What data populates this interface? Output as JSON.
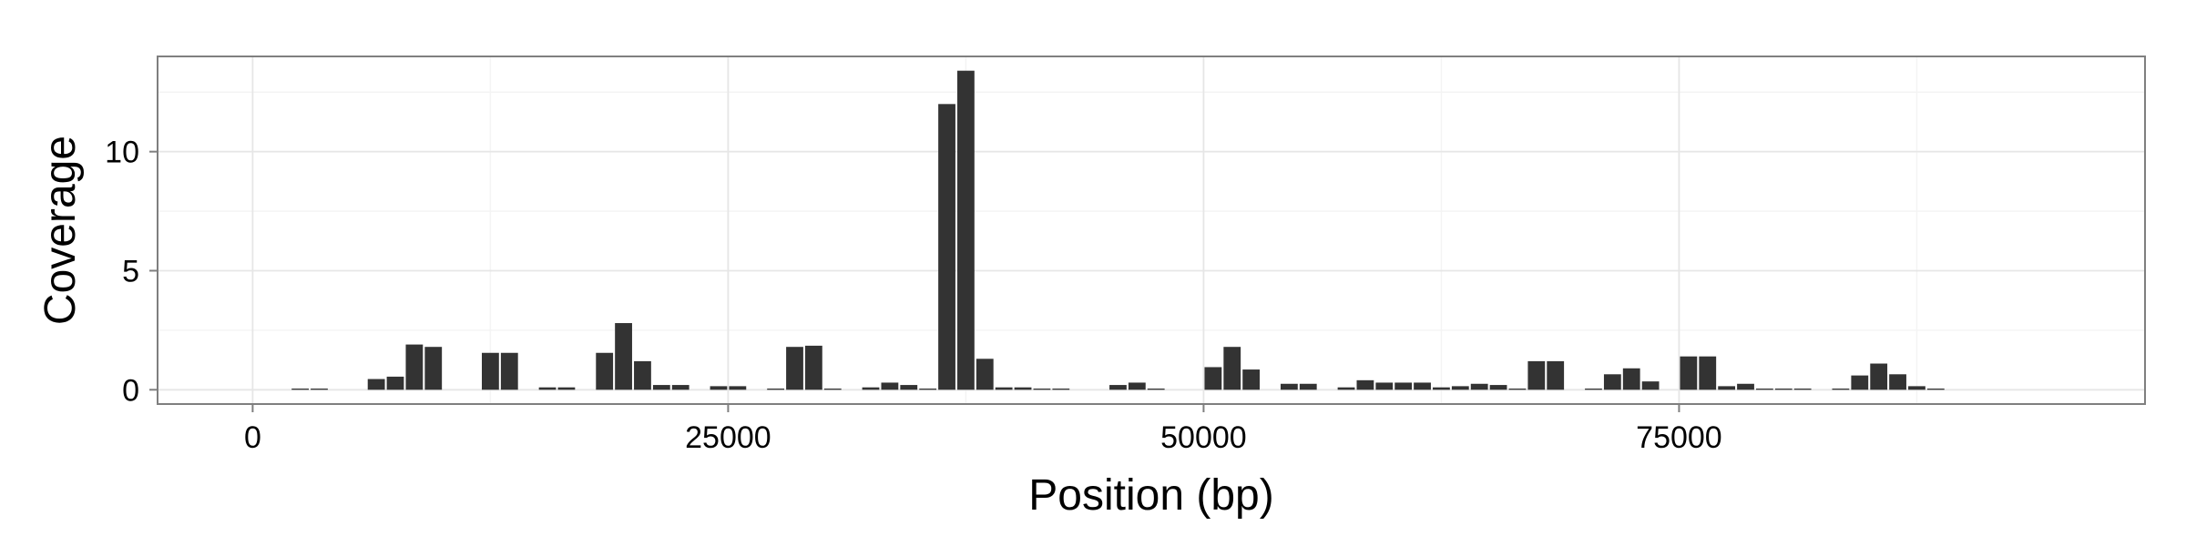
{
  "chart_data": {
    "type": "bar",
    "title": "",
    "xlabel": "Position (bp)",
    "ylabel": "Coverage",
    "xlim": [
      -5000,
      99500
    ],
    "ylim": [
      -0.6,
      14.0
    ],
    "x_ticks": [
      0,
      25000,
      50000,
      75000
    ],
    "x_tick_labels": [
      "0",
      "25000",
      "50000",
      "75000"
    ],
    "y_ticks": [
      0,
      5,
      10
    ],
    "y_tick_labels": [
      "0",
      "5",
      "10"
    ],
    "bin_width": 1000,
    "grid": true,
    "bar_color": "#333333",
    "x": [
      2500,
      3500,
      6500,
      7500,
      8500,
      9500,
      12500,
      13500,
      15500,
      16500,
      18500,
      19500,
      20500,
      21500,
      22500,
      24500,
      25500,
      27500,
      28500,
      29500,
      30500,
      32500,
      33500,
      34500,
      35500,
      36500,
      37500,
      38500,
      39500,
      40500,
      41500,
      42500,
      45500,
      46500,
      47500,
      50500,
      51500,
      52500,
      54500,
      55500,
      57500,
      58500,
      59500,
      60500,
      61500,
      62500,
      63500,
      64500,
      65500,
      66500,
      67500,
      68500,
      70500,
      71500,
      72500,
      73500,
      75500,
      76500,
      77500,
      78500,
      79500,
      80500,
      81500,
      83500,
      84500,
      85500,
      86500,
      87500,
      88500
    ],
    "values": [
      0.05,
      0.05,
      0.45,
      0.55,
      1.9,
      1.8,
      1.55,
      1.55,
      0.1,
      0.1,
      1.55,
      2.8,
      1.2,
      0.2,
      0.2,
      0.15,
      0.15,
      0.05,
      1.8,
      1.85,
      0.05,
      0.1,
      0.3,
      0.2,
      0.05,
      12.0,
      13.4,
      1.3,
      0.1,
      0.1,
      0.05,
      0.05,
      0.2,
      0.3,
      0.05,
      0.95,
      1.8,
      0.85,
      0.25,
      0.25,
      0.1,
      0.4,
      0.3,
      0.3,
      0.3,
      0.1,
      0.15,
      0.25,
      0.2,
      0.05,
      1.2,
      1.2,
      0.05,
      0.65,
      0.9,
      0.35,
      1.4,
      1.4,
      0.15,
      0.25,
      0.05,
      0.05,
      0.05,
      0.05,
      0.6,
      1.1,
      0.65,
      0.15,
      0.05
    ]
  }
}
